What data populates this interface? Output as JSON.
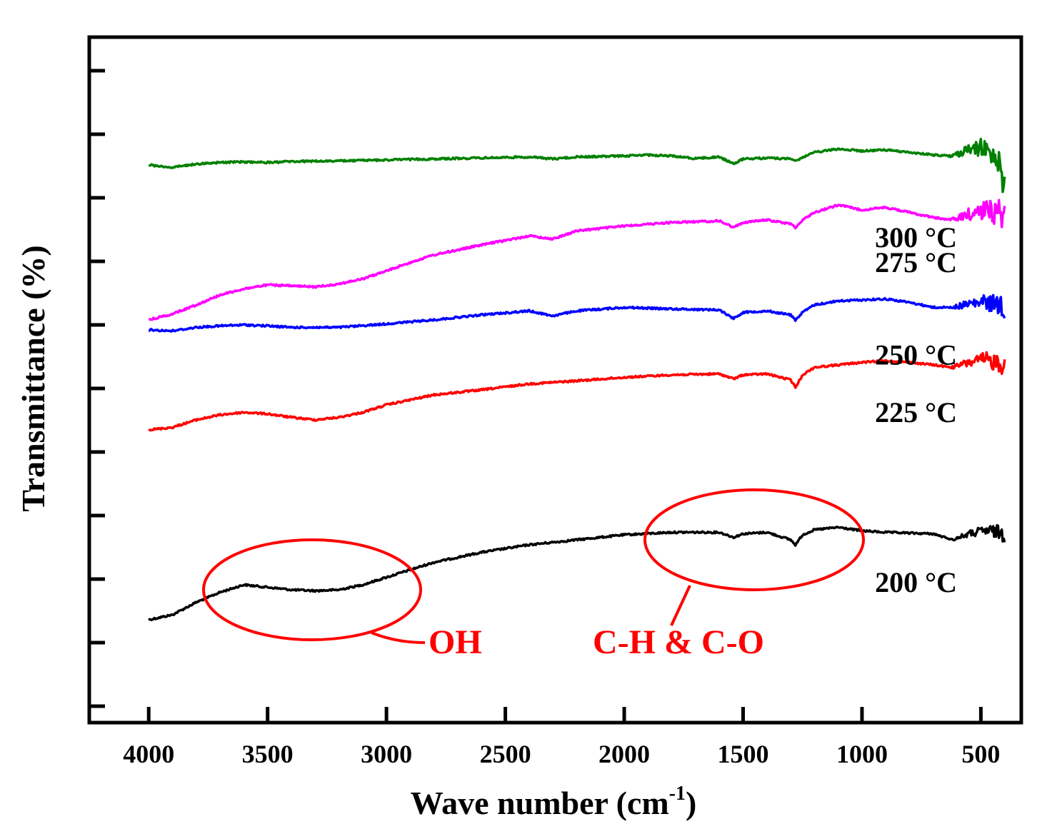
{
  "chart_data": {
    "type": "line",
    "title": "",
    "xlabel": "Wave number (cm",
    "xlabel_sup": "-1",
    "xlabel_close": ")",
    "ylabel": "Transmittance (%)",
    "xlim": [
      4250,
      330
    ],
    "x_reversed": true,
    "y_tick_count": 11,
    "y_tick_labels_shown": false,
    "grid": false,
    "x_ticks": [
      4000,
      3500,
      3000,
      2500,
      2000,
      1500,
      1000,
      500
    ],
    "series": [
      {
        "name": "200 °C",
        "label": "200 °C",
        "color": "#000000",
        "noise_end": 22,
        "points": [
          [
            4000,
            0.0
          ],
          [
            3900,
            0.1
          ],
          [
            3800,
            0.35
          ],
          [
            3700,
            0.55
          ],
          [
            3600,
            0.7
          ],
          [
            3500,
            0.65
          ],
          [
            3400,
            0.6
          ],
          [
            3300,
            0.58
          ],
          [
            3200,
            0.6
          ],
          [
            3100,
            0.7
          ],
          [
            3000,
            0.85
          ],
          [
            2800,
            1.15
          ],
          [
            2600,
            1.35
          ],
          [
            2400,
            1.5
          ],
          [
            2200,
            1.6
          ],
          [
            2000,
            1.7
          ],
          [
            1800,
            1.75
          ],
          [
            1600,
            1.75
          ],
          [
            1540,
            1.65
          ],
          [
            1500,
            1.72
          ],
          [
            1400,
            1.75
          ],
          [
            1300,
            1.6
          ],
          [
            1280,
            1.5
          ],
          [
            1250,
            1.7
          ],
          [
            1200,
            1.8
          ],
          [
            1100,
            1.85
          ],
          [
            1000,
            1.78
          ],
          [
            900,
            1.75
          ],
          [
            700,
            1.72
          ],
          [
            620,
            1.6
          ],
          [
            550,
            1.72
          ],
          [
            480,
            1.78
          ],
          [
            420,
            1.75
          ],
          [
            400,
            1.7
          ]
        ]
      },
      {
        "name": "225 °C",
        "label": "225 °C",
        "color": "#ff0000",
        "noise_end": 32,
        "points": [
          [
            4000,
            3.8
          ],
          [
            3900,
            3.85
          ],
          [
            3800,
            4.0
          ],
          [
            3700,
            4.1
          ],
          [
            3600,
            4.15
          ],
          [
            3500,
            4.12
          ],
          [
            3400,
            4.05
          ],
          [
            3300,
            4.0
          ],
          [
            3200,
            4.05
          ],
          [
            3100,
            4.15
          ],
          [
            3000,
            4.3
          ],
          [
            2800,
            4.5
          ],
          [
            2600,
            4.6
          ],
          [
            2400,
            4.72
          ],
          [
            2200,
            4.78
          ],
          [
            2000,
            4.85
          ],
          [
            1800,
            4.9
          ],
          [
            1600,
            4.92
          ],
          [
            1540,
            4.82
          ],
          [
            1500,
            4.9
          ],
          [
            1400,
            4.92
          ],
          [
            1300,
            4.8
          ],
          [
            1280,
            4.65
          ],
          [
            1250,
            4.9
          ],
          [
            1200,
            5.05
          ],
          [
            1100,
            5.1
          ],
          [
            1000,
            5.15
          ],
          [
            900,
            5.18
          ],
          [
            800,
            5.15
          ],
          [
            700,
            5.1
          ],
          [
            620,
            5.05
          ],
          [
            550,
            5.15
          ],
          [
            480,
            5.2
          ],
          [
            420,
            5.15
          ],
          [
            400,
            5.1
          ]
        ]
      },
      {
        "name": "250 °C",
        "label": "250 °C",
        "color": "#0000ff",
        "noise_end": 32,
        "points": [
          [
            4000,
            5.8
          ],
          [
            3900,
            5.78
          ],
          [
            3800,
            5.85
          ],
          [
            3700,
            5.88
          ],
          [
            3600,
            5.9
          ],
          [
            3500,
            5.88
          ],
          [
            3400,
            5.85
          ],
          [
            3200,
            5.85
          ],
          [
            3000,
            5.92
          ],
          [
            2800,
            6.0
          ],
          [
            2600,
            6.1
          ],
          [
            2400,
            6.18
          ],
          [
            2300,
            6.08
          ],
          [
            2200,
            6.18
          ],
          [
            2000,
            6.25
          ],
          [
            1800,
            6.22
          ],
          [
            1600,
            6.2
          ],
          [
            1540,
            6.03
          ],
          [
            1500,
            6.15
          ],
          [
            1400,
            6.18
          ],
          [
            1300,
            6.1
          ],
          [
            1280,
            6.0
          ],
          [
            1250,
            6.15
          ],
          [
            1200,
            6.3
          ],
          [
            1100,
            6.38
          ],
          [
            1000,
            6.4
          ],
          [
            900,
            6.42
          ],
          [
            800,
            6.35
          ],
          [
            700,
            6.25
          ],
          [
            620,
            6.25
          ],
          [
            550,
            6.32
          ],
          [
            480,
            6.35
          ],
          [
            420,
            6.3
          ],
          [
            400,
            6.25
          ]
        ]
      },
      {
        "name": "275 °C",
        "label": "275 °C",
        "color": "#ff00ff",
        "noise_end": 42,
        "points": [
          [
            4000,
            6.0
          ],
          [
            3900,
            6.12
          ],
          [
            3800,
            6.3
          ],
          [
            3700,
            6.5
          ],
          [
            3600,
            6.62
          ],
          [
            3500,
            6.7
          ],
          [
            3400,
            6.68
          ],
          [
            3300,
            6.66
          ],
          [
            3200,
            6.72
          ],
          [
            3100,
            6.82
          ],
          [
            3000,
            6.98
          ],
          [
            2900,
            7.15
          ],
          [
            2800,
            7.3
          ],
          [
            2600,
            7.5
          ],
          [
            2400,
            7.68
          ],
          [
            2300,
            7.62
          ],
          [
            2200,
            7.78
          ],
          [
            2000,
            7.88
          ],
          [
            1800,
            7.95
          ],
          [
            1600,
            7.98
          ],
          [
            1540,
            7.85
          ],
          [
            1500,
            7.95
          ],
          [
            1400,
            8.0
          ],
          [
            1300,
            7.92
          ],
          [
            1280,
            7.85
          ],
          [
            1250,
            8.0
          ],
          [
            1200,
            8.15
          ],
          [
            1100,
            8.3
          ],
          [
            1000,
            8.2
          ],
          [
            900,
            8.25
          ],
          [
            800,
            8.15
          ],
          [
            700,
            8.05
          ],
          [
            620,
            8.0
          ],
          [
            550,
            8.12
          ],
          [
            480,
            8.2
          ],
          [
            420,
            8.15
          ],
          [
            400,
            8.1
          ]
        ]
      },
      {
        "name": "300 °C",
        "label": "300 °C",
        "color": "#008000",
        "noise_end": 42,
        "points": [
          [
            4000,
            9.1
          ],
          [
            3900,
            9.05
          ],
          [
            3800,
            9.12
          ],
          [
            3700,
            9.15
          ],
          [
            3600,
            9.16
          ],
          [
            3500,
            9.15
          ],
          [
            3400,
            9.17
          ],
          [
            3200,
            9.18
          ],
          [
            3000,
            9.2
          ],
          [
            2800,
            9.22
          ],
          [
            2600,
            9.24
          ],
          [
            2400,
            9.26
          ],
          [
            2300,
            9.22
          ],
          [
            2200,
            9.26
          ],
          [
            2000,
            9.28
          ],
          [
            1900,
            9.3
          ],
          [
            1800,
            9.28
          ],
          [
            1700,
            9.23
          ],
          [
            1600,
            9.26
          ],
          [
            1540,
            9.12
          ],
          [
            1500,
            9.22
          ],
          [
            1400,
            9.24
          ],
          [
            1300,
            9.22
          ],
          [
            1280,
            9.18
          ],
          [
            1250,
            9.25
          ],
          [
            1200,
            9.35
          ],
          [
            1100,
            9.42
          ],
          [
            1000,
            9.38
          ],
          [
            900,
            9.4
          ],
          [
            800,
            9.35
          ],
          [
            700,
            9.3
          ],
          [
            620,
            9.28
          ],
          [
            550,
            9.4
          ],
          [
            500,
            9.45
          ],
          [
            460,
            9.35
          ],
          [
            420,
            9.2
          ],
          [
            400,
            8.6
          ]
        ]
      }
    ],
    "annotations": [
      {
        "text": "OH",
        "color": "#ff0000"
      },
      {
        "text": "C-H & C-O",
        "color": "#ff0000"
      }
    ]
  }
}
